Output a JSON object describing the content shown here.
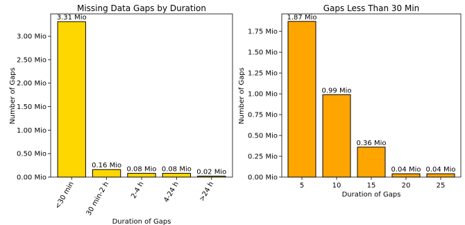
{
  "chart_data": [
    {
      "type": "bar",
      "title": "Missing Data Gaps by Duration",
      "xlabel": "Duration of Gaps",
      "ylabel": "Number of Gaps",
      "categories": [
        "<30 min",
        "30 min-2 h",
        "2-4 h",
        "4-24 h",
        ">24 h"
      ],
      "values": [
        3.31,
        0.16,
        0.08,
        0.08,
        0.02
      ],
      "value_labels": [
        "3.31 Mio",
        "0.16 Mio",
        "0.08 Mio",
        "0.08 Mio",
        "0.02 Mio"
      ],
      "ylim": [
        0,
        3.475
      ],
      "yticks": [
        0,
        0.5,
        1.0,
        1.5,
        2.0,
        2.5,
        3.0
      ],
      "ytick_labels": [
        "0.00 Mio",
        "0.50 Mio",
        "1.00 Mio",
        "1.50 Mio",
        "2.00 Mio",
        "2.50 Mio",
        "3.00 Mio"
      ],
      "bar_color": "#FFD700",
      "edge_color": "#000000",
      "grid": false
    },
    {
      "type": "bar",
      "title": "Gaps Less Than 30 Min",
      "xlabel": "Duration of Gaps",
      "ylabel": "Number of Gaps",
      "x": [
        5,
        10,
        15,
        20,
        25
      ],
      "values": [
        1.87,
        0.99,
        0.36,
        0.04,
        0.04
      ],
      "value_labels": [
        "1.87 Mio",
        "0.99 Mio",
        "0.36 Mio",
        "0.04 Mio",
        "0.04 Mio"
      ],
      "ylim": [
        0,
        1.96
      ],
      "xlim": [
        2.1,
        27.9
      ],
      "bar_width": 4,
      "xticks": [
        5,
        10,
        15,
        20,
        25
      ],
      "xtick_labels": [
        "5",
        "10",
        "15",
        "20",
        "25"
      ],
      "yticks": [
        0,
        0.25,
        0.5,
        0.75,
        1.0,
        1.25,
        1.5,
        1.75
      ],
      "ytick_labels": [
        "0.00 Mio",
        "0.25 Mio",
        "0.50 Mio",
        "0.75 Mio",
        "1.00 Mio",
        "1.25 Mio",
        "1.50 Mio",
        "1.75 Mio"
      ],
      "bar_color": "#FFA500",
      "edge_color": "#000000",
      "grid": false
    }
  ]
}
